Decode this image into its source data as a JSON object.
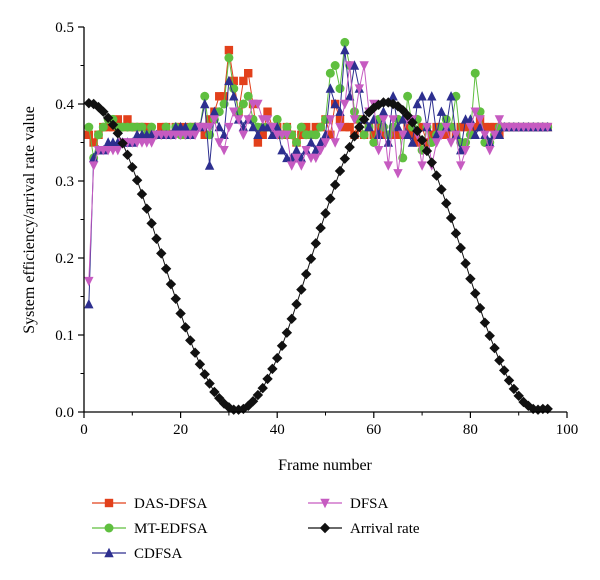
{
  "chart_data": {
    "type": "line",
    "xlabel": "Frame number",
    "ylabel": "System efficiency/arrival rate value",
    "xlim": [
      0,
      100
    ],
    "ylim": [
      0.0,
      0.5
    ],
    "xticks": [
      "0",
      "20",
      "40",
      "60",
      "80",
      "100"
    ],
    "yticks": [
      "0.0",
      "0.1",
      "0.2",
      "0.3",
      "0.4",
      "0.5"
    ],
    "legend": "bottom",
    "series": [
      {
        "name": "DAS-DFSA",
        "color": "#e2401b",
        "marker": "square",
        "x": [
          1,
          2,
          3,
          4,
          5,
          6,
          7,
          8,
          9,
          10,
          11,
          12,
          13,
          14,
          15,
          16,
          17,
          18,
          19,
          20,
          21,
          22,
          23,
          24,
          25,
          26,
          27,
          28,
          29,
          30,
          31,
          32,
          33,
          34,
          35,
          36,
          37,
          38,
          39,
          40,
          41,
          42,
          43,
          44,
          45,
          46,
          47,
          48,
          49,
          50,
          51,
          52,
          53,
          54,
          55,
          56,
          57,
          58,
          59,
          60,
          61,
          62,
          63,
          64,
          65,
          66,
          67,
          68,
          69,
          70,
          71,
          72,
          73,
          74,
          75,
          76,
          77,
          78,
          79,
          80,
          81,
          82,
          83,
          84,
          85,
          86,
          87,
          88,
          89,
          90,
          91,
          92,
          93,
          94,
          95,
          96
        ],
        "values": [
          0.36,
          0.35,
          0.36,
          0.37,
          0.37,
          0.37,
          0.38,
          0.37,
          0.38,
          0.37,
          0.37,
          0.37,
          0.37,
          0.36,
          0.36,
          0.37,
          0.37,
          0.36,
          0.37,
          0.37,
          0.36,
          0.37,
          0.37,
          0.37,
          0.36,
          0.38,
          0.39,
          0.41,
          0.41,
          0.47,
          0.43,
          0.39,
          0.43,
          0.44,
          0.4,
          0.35,
          0.36,
          0.39,
          0.37,
          0.37,
          0.36,
          0.37,
          0.36,
          0.35,
          0.36,
          0.37,
          0.36,
          0.37,
          0.37,
          0.38,
          0.36,
          0.4,
          0.38,
          0.37,
          0.37,
          0.36,
          0.38,
          0.36,
          0.37,
          0.36,
          0.37,
          0.36,
          0.36,
          0.36,
          0.36,
          0.36,
          0.37,
          0.36,
          0.35,
          0.37,
          0.35,
          0.36,
          0.37,
          0.37,
          0.36,
          0.37,
          0.36,
          0.37,
          0.37,
          0.37,
          0.37,
          0.38,
          0.37,
          0.37,
          0.37,
          0.36,
          0.37,
          0.37,
          0.37,
          0.37,
          0.37,
          0.37,
          0.37,
          0.37,
          0.37,
          0.37
        ]
      },
      {
        "name": "MT-EDFSA",
        "color": "#5fbf3f",
        "marker": "circle",
        "x": [
          1,
          2,
          3,
          4,
          5,
          6,
          7,
          8,
          9,
          10,
          11,
          12,
          13,
          14,
          15,
          16,
          17,
          18,
          19,
          20,
          21,
          22,
          23,
          24,
          25,
          26,
          27,
          28,
          29,
          30,
          31,
          32,
          33,
          34,
          35,
          36,
          37,
          38,
          39,
          40,
          41,
          42,
          43,
          44,
          45,
          46,
          47,
          48,
          49,
          50,
          51,
          52,
          53,
          54,
          55,
          56,
          57,
          58,
          59,
          60,
          61,
          62,
          63,
          64,
          65,
          66,
          67,
          68,
          69,
          70,
          71,
          72,
          73,
          74,
          75,
          76,
          77,
          78,
          79,
          80,
          81,
          82,
          83,
          84,
          85,
          86,
          87,
          88,
          89,
          90,
          91,
          92,
          93,
          94,
          95,
          96
        ],
        "values": [
          0.37,
          0.33,
          0.36,
          0.37,
          0.38,
          0.38,
          0.37,
          0.37,
          0.37,
          0.37,
          0.37,
          0.37,
          0.36,
          0.37,
          0.36,
          0.36,
          0.37,
          0.36,
          0.37,
          0.36,
          0.36,
          0.37,
          0.37,
          0.37,
          0.41,
          0.36,
          0.38,
          0.39,
          0.4,
          0.46,
          0.42,
          0.39,
          0.4,
          0.41,
          0.38,
          0.37,
          0.37,
          0.37,
          0.37,
          0.38,
          0.36,
          0.37,
          0.36,
          0.35,
          0.37,
          0.36,
          0.36,
          0.36,
          0.37,
          0.38,
          0.44,
          0.45,
          0.42,
          0.48,
          0.45,
          0.39,
          0.38,
          0.36,
          0.37,
          0.35,
          0.38,
          0.37,
          0.36,
          0.37,
          0.38,
          0.33,
          0.41,
          0.37,
          0.38,
          0.34,
          0.37,
          0.35,
          0.36,
          0.37,
          0.38,
          0.37,
          0.41,
          0.35,
          0.35,
          0.36,
          0.44,
          0.39,
          0.35,
          0.35,
          0.36,
          0.37,
          0.37,
          0.37,
          0.37,
          0.37,
          0.37,
          0.37,
          0.37,
          0.37,
          0.37,
          0.37
        ]
      },
      {
        "name": "CDFSA",
        "color": "#2d2f8f",
        "marker": "triangle-up",
        "x": [
          1,
          2,
          3,
          4,
          5,
          6,
          7,
          8,
          9,
          10,
          11,
          12,
          13,
          14,
          15,
          16,
          17,
          18,
          19,
          20,
          21,
          22,
          23,
          24,
          25,
          26,
          27,
          28,
          29,
          30,
          31,
          32,
          33,
          34,
          35,
          36,
          37,
          38,
          39,
          40,
          41,
          42,
          43,
          44,
          45,
          46,
          47,
          48,
          49,
          50,
          51,
          52,
          53,
          54,
          55,
          56,
          57,
          58,
          59,
          60,
          61,
          62,
          63,
          64,
          65,
          66,
          67,
          68,
          69,
          70,
          71,
          72,
          73,
          74,
          75,
          76,
          77,
          78,
          79,
          80,
          81,
          82,
          83,
          84,
          85,
          86,
          87,
          88,
          89,
          90,
          91,
          92,
          93,
          94,
          95,
          96
        ],
        "values": [
          0.14,
          0.33,
          0.34,
          0.34,
          0.35,
          0.35,
          0.35,
          0.35,
          0.35,
          0.35,
          0.36,
          0.36,
          0.36,
          0.36,
          0.36,
          0.36,
          0.36,
          0.36,
          0.37,
          0.37,
          0.37,
          0.36,
          0.37,
          0.37,
          0.4,
          0.32,
          0.39,
          0.37,
          0.36,
          0.43,
          0.41,
          0.38,
          0.37,
          0.38,
          0.37,
          0.36,
          0.37,
          0.37,
          0.36,
          0.37,
          0.34,
          0.33,
          0.33,
          0.34,
          0.33,
          0.34,
          0.35,
          0.34,
          0.35,
          0.36,
          0.42,
          0.4,
          0.39,
          0.47,
          0.41,
          0.45,
          0.42,
          0.38,
          0.37,
          0.38,
          0.36,
          0.39,
          0.35,
          0.41,
          0.37,
          0.38,
          0.36,
          0.35,
          0.4,
          0.41,
          0.37,
          0.41,
          0.36,
          0.39,
          0.37,
          0.41,
          0.36,
          0.34,
          0.38,
          0.38,
          0.36,
          0.37,
          0.36,
          0.35,
          0.36,
          0.36,
          0.37,
          0.37,
          0.37,
          0.37,
          0.37,
          0.37,
          0.37,
          0.37,
          0.37,
          0.37
        ]
      },
      {
        "name": "DFSA",
        "color": "#c65bc1",
        "marker": "triangle-down",
        "x": [
          1,
          2,
          3,
          4,
          5,
          6,
          7,
          8,
          9,
          10,
          11,
          12,
          13,
          14,
          15,
          16,
          17,
          18,
          19,
          20,
          21,
          22,
          23,
          24,
          25,
          26,
          27,
          28,
          29,
          30,
          31,
          32,
          33,
          34,
          35,
          36,
          37,
          38,
          39,
          40,
          41,
          42,
          43,
          44,
          45,
          46,
          47,
          48,
          49,
          50,
          51,
          52,
          53,
          54,
          55,
          56,
          57,
          58,
          59,
          60,
          61,
          62,
          63,
          64,
          65,
          66,
          67,
          68,
          69,
          70,
          71,
          72,
          73,
          74,
          75,
          76,
          77,
          78,
          79,
          80,
          81,
          82,
          83,
          84,
          85,
          86,
          87,
          88,
          89,
          90,
          91,
          92,
          93,
          94,
          95,
          96
        ],
        "values": [
          0.17,
          0.32,
          0.34,
          0.34,
          0.34,
          0.34,
          0.34,
          0.35,
          0.35,
          0.35,
          0.35,
          0.35,
          0.35,
          0.35,
          0.36,
          0.36,
          0.36,
          0.36,
          0.36,
          0.36,
          0.36,
          0.36,
          0.36,
          0.37,
          0.37,
          0.37,
          0.38,
          0.35,
          0.34,
          0.37,
          0.39,
          0.38,
          0.36,
          0.38,
          0.4,
          0.4,
          0.38,
          0.38,
          0.37,
          0.36,
          0.36,
          0.36,
          0.32,
          0.33,
          0.32,
          0.34,
          0.33,
          0.33,
          0.34,
          0.35,
          0.38,
          0.35,
          0.37,
          0.4,
          0.45,
          0.38,
          0.42,
          0.45,
          0.39,
          0.4,
          0.34,
          0.38,
          0.32,
          0.38,
          0.31,
          0.36,
          0.38,
          0.38,
          0.36,
          0.32,
          0.37,
          0.32,
          0.35,
          0.36,
          0.37,
          0.35,
          0.36,
          0.32,
          0.34,
          0.37,
          0.39,
          0.38,
          0.36,
          0.34,
          0.36,
          0.38,
          0.37,
          0.37,
          0.37,
          0.37,
          0.37,
          0.37,
          0.37,
          0.37,
          0.37,
          0.37
        ]
      },
      {
        "name": "Arrival rate",
        "color": "#111111",
        "marker": "diamond",
        "x": [
          1,
          2,
          3,
          4,
          5,
          6,
          7,
          8,
          9,
          10,
          11,
          12,
          13,
          14,
          15,
          16,
          17,
          18,
          19,
          20,
          21,
          22,
          23,
          24,
          25,
          26,
          27,
          28,
          29,
          30,
          31,
          32,
          33,
          34,
          35,
          36,
          37,
          38,
          39,
          40,
          41,
          42,
          43,
          44,
          45,
          46,
          47,
          48,
          49,
          50,
          51,
          52,
          53,
          54,
          55,
          56,
          57,
          58,
          59,
          60,
          61,
          62,
          63,
          64,
          65,
          66,
          67,
          68,
          69,
          70,
          71,
          72,
          73,
          74,
          75,
          76,
          77,
          78,
          79,
          80,
          81,
          82,
          83,
          84,
          85,
          86,
          87,
          88,
          89,
          90,
          91,
          92,
          93,
          94,
          95,
          96
        ],
        "values": [
          0.401,
          0.4,
          0.396,
          0.39,
          0.382,
          0.373,
          0.362,
          0.349,
          0.334,
          0.318,
          0.301,
          0.283,
          0.264,
          0.245,
          0.225,
          0.206,
          0.186,
          0.166,
          0.147,
          0.128,
          0.11,
          0.093,
          0.077,
          0.062,
          0.049,
          0.037,
          0.026,
          0.018,
          0.011,
          0.006,
          0.003,
          0.003,
          0.004,
          0.008,
          0.014,
          0.022,
          0.031,
          0.043,
          0.056,
          0.07,
          0.086,
          0.103,
          0.121,
          0.14,
          0.159,
          0.179,
          0.199,
          0.219,
          0.239,
          0.258,
          0.277,
          0.295,
          0.313,
          0.329,
          0.344,
          0.358,
          0.37,
          0.38,
          0.389,
          0.395,
          0.399,
          0.402,
          0.402,
          0.4,
          0.397,
          0.392,
          0.385,
          0.376,
          0.365,
          0.353,
          0.339,
          0.324,
          0.307,
          0.289,
          0.271,
          0.252,
          0.232,
          0.213,
          0.193,
          0.173,
          0.154,
          0.135,
          0.116,
          0.099,
          0.083,
          0.067,
          0.054,
          0.041,
          0.03,
          0.021,
          0.013,
          0.008,
          0.004,
          0.003,
          0.004,
          0.004
        ]
      }
    ]
  }
}
